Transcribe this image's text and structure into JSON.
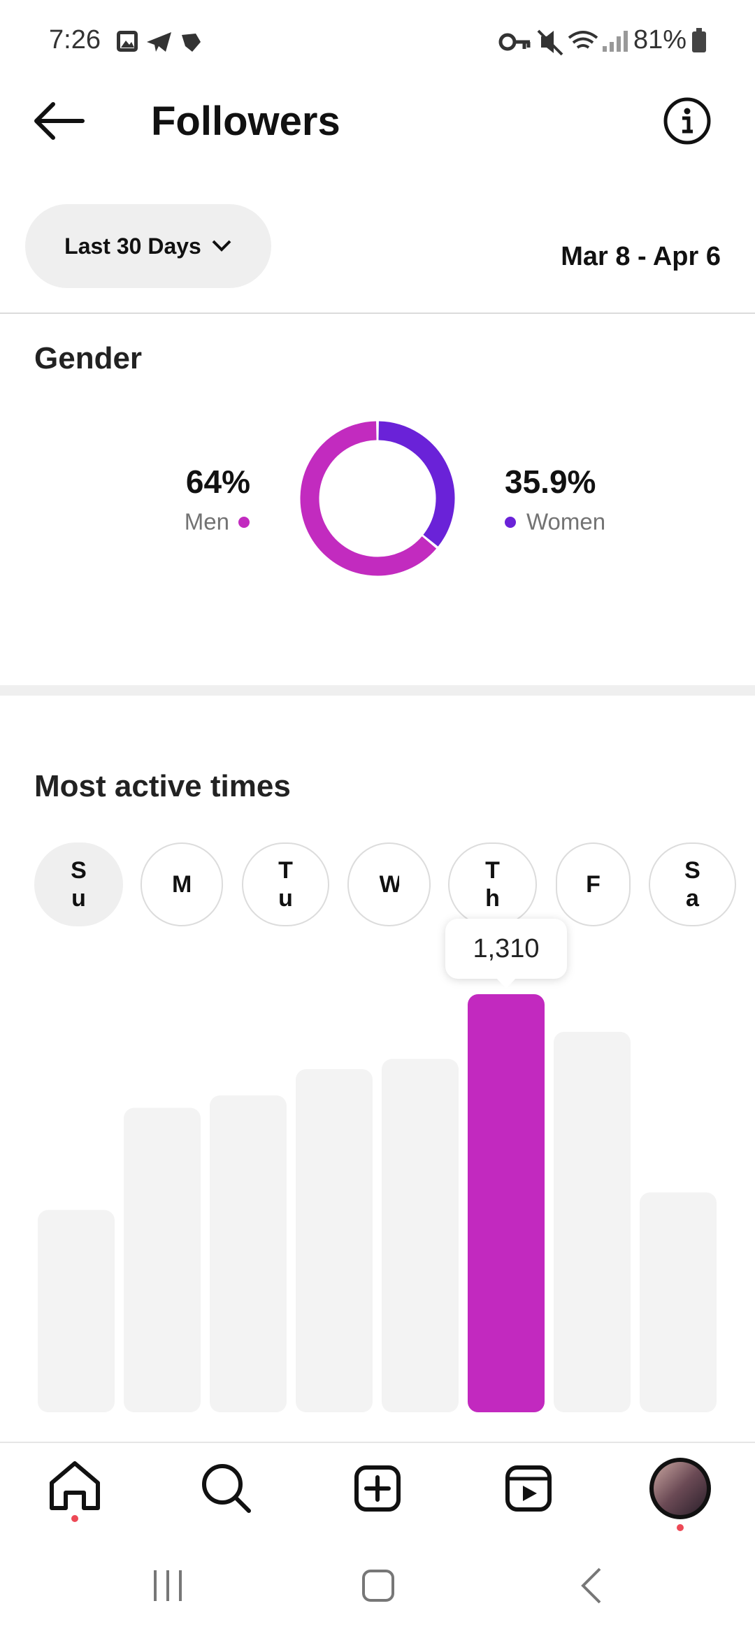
{
  "status_bar": {
    "time": "7:26",
    "battery": "81%"
  },
  "header": {
    "title": "Followers"
  },
  "filter": {
    "range": "Last 30 Days",
    "dates": "Mar 8 - Apr 6"
  },
  "chart_data": [
    {
      "type": "pie",
      "title": "Gender",
      "categories": [
        "Men",
        "Women"
      ],
      "values": [
        64,
        35.9
      ],
      "value_labels": [
        "64%",
        "35.9%"
      ],
      "colors": [
        "#c22bbf",
        "#6a22d8"
      ]
    },
    {
      "type": "bar",
      "title": "Most active times",
      "tabs": [
        "Su",
        "M",
        "Tu",
        "W",
        "Th",
        "F",
        "Sa"
      ],
      "selected_tab": 0,
      "values": [
        634,
        954,
        993,
        1075,
        1107,
        1310,
        1192,
        689
      ],
      "value_labels": [
        null,
        null,
        null,
        null,
        null,
        "1,310",
        null,
        null
      ],
      "color": "#f3f3f3",
      "highlight": {
        "index": 5,
        "color": "#c229bf"
      }
    }
  ]
}
